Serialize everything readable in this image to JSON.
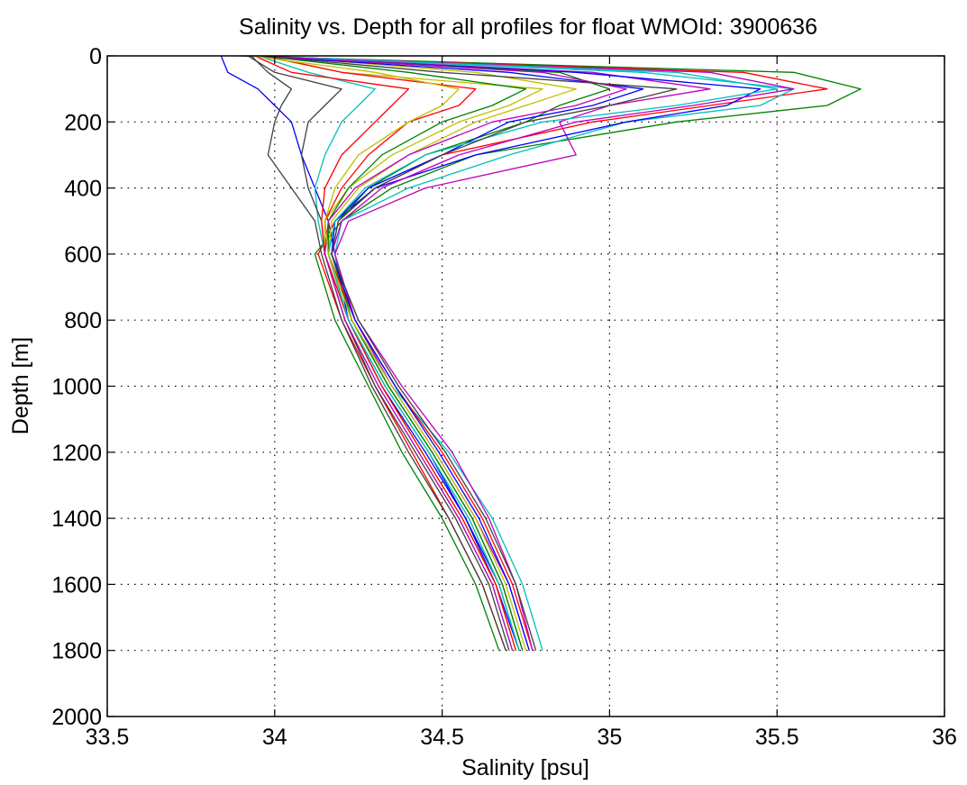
{
  "chart_data": {
    "type": "line",
    "title": "Salinity vs. Depth for all profiles for float WMOId: 3900636",
    "xlabel": "Salinity [psu]",
    "ylabel": "Depth [m]",
    "xlim": [
      33.5,
      36
    ],
    "ylim": [
      0,
      2000
    ],
    "y_reversed": true,
    "grid": true,
    "legend": "none",
    "x_ticks": [
      "33.5",
      "34",
      "34.5",
      "35",
      "35.5",
      "36"
    ],
    "y_ticks": [
      "0",
      "200",
      "400",
      "600",
      "800",
      "1000",
      "1200",
      "1400",
      "1600",
      "1800",
      "2000"
    ],
    "x_tick_values": [
      33.5,
      34,
      34.5,
      35,
      35.5,
      36
    ],
    "y_tick_values": [
      0,
      200,
      400,
      600,
      800,
      1000,
      1200,
      1400,
      1600,
      1800,
      2000
    ],
    "line_colors": [
      "#0000ff",
      "#008000",
      "#ff0000",
      "#00bfbf",
      "#bf00bf",
      "#bfbf00",
      "#404040"
    ],
    "depths": [
      0,
      50,
      100,
      150,
      200,
      300,
      400,
      500,
      600,
      800,
      1000,
      1200,
      1400,
      1600,
      1800
    ],
    "series": [
      {
        "values": [
          33.84,
          33.86,
          33.95,
          34.0,
          34.05,
          34.08,
          34.12,
          34.16,
          34.18,
          34.22,
          34.33,
          34.46,
          34.57,
          34.66,
          34.73
        ]
      },
      {
        "values": [
          33.9,
          35.55,
          35.75,
          35.65,
          35.2,
          34.6,
          34.35,
          34.2,
          34.12,
          34.18,
          34.28,
          34.38,
          34.5,
          34.6,
          34.67
        ]
      },
      {
        "values": [
          33.9,
          35.4,
          35.65,
          35.3,
          34.95,
          34.5,
          34.3,
          34.18,
          34.13,
          34.2,
          34.3,
          34.41,
          34.52,
          34.62,
          34.69
        ]
      },
      {
        "values": [
          33.95,
          35.1,
          35.55,
          35.45,
          35.05,
          34.7,
          34.4,
          34.2,
          34.18,
          34.23,
          34.35,
          34.52,
          34.65,
          34.74,
          34.8
        ]
      },
      {
        "values": [
          33.95,
          34.95,
          35.3,
          35.0,
          34.85,
          34.9,
          34.45,
          34.22,
          34.18,
          34.24,
          34.35,
          34.48,
          34.6,
          34.7,
          34.76
        ]
      },
      {
        "values": [
          33.96,
          34.2,
          34.8,
          34.7,
          34.55,
          34.35,
          34.22,
          34.15,
          34.15,
          34.22,
          34.32,
          34.44,
          34.56,
          34.66,
          34.72
        ]
      },
      {
        "values": [
          33.93,
          33.98,
          34.05,
          34.02,
          34.0,
          33.98,
          34.05,
          34.12,
          34.14,
          34.2,
          34.29,
          34.4,
          34.52,
          34.62,
          34.69
        ]
      },
      {
        "values": [
          33.92,
          34.9,
          35.45,
          35.35,
          35.05,
          34.6,
          34.3,
          34.18,
          34.16,
          34.22,
          34.32,
          34.45,
          34.57,
          34.67,
          34.73
        ]
      },
      {
        "values": [
          33.94,
          34.85,
          35.0,
          34.85,
          34.75,
          34.45,
          34.28,
          34.19,
          34.17,
          34.23,
          34.34,
          34.47,
          34.59,
          34.68,
          34.74
        ]
      },
      {
        "values": [
          33.97,
          34.2,
          34.6,
          34.55,
          34.4,
          34.28,
          34.2,
          34.15,
          34.16,
          34.24,
          34.36,
          34.5,
          34.62,
          34.71,
          34.77
        ]
      },
      {
        "values": [
          33.95,
          34.1,
          34.3,
          34.25,
          34.2,
          34.15,
          34.12,
          34.13,
          34.15,
          34.21,
          34.31,
          34.43,
          34.55,
          34.65,
          34.71
        ]
      },
      {
        "values": [
          33.93,
          35.3,
          35.55,
          35.25,
          34.9,
          34.55,
          34.32,
          34.2,
          34.17,
          34.25,
          34.38,
          34.53,
          34.64,
          34.72,
          34.77
        ]
      },
      {
        "values": [
          33.98,
          34.6,
          34.9,
          34.75,
          34.6,
          34.4,
          34.25,
          34.17,
          34.16,
          34.22,
          34.33,
          34.46,
          34.58,
          34.67,
          34.73
        ]
      },
      {
        "values": [
          33.92,
          34.0,
          34.2,
          34.15,
          34.1,
          34.08,
          34.1,
          34.14,
          34.15,
          34.21,
          34.3,
          34.42,
          34.54,
          34.64,
          34.7
        ]
      },
      {
        "values": [
          33.95,
          34.7,
          35.1,
          34.95,
          34.7,
          34.5,
          34.28,
          34.18,
          34.17,
          34.24,
          34.36,
          34.49,
          34.61,
          34.7,
          34.76
        ]
      },
      {
        "values": [
          33.96,
          34.4,
          34.75,
          34.65,
          34.5,
          34.32,
          34.22,
          34.16,
          34.16,
          34.23,
          34.34,
          34.47,
          34.59,
          34.68,
          34.74
        ]
      },
      {
        "values": [
          33.94,
          34.05,
          34.4,
          34.35,
          34.3,
          34.2,
          34.15,
          34.14,
          34.15,
          34.22,
          34.32,
          34.44,
          34.56,
          34.66,
          34.72
        ]
      },
      {
        "values": [
          33.95,
          35.2,
          35.5,
          35.2,
          34.8,
          34.45,
          34.27,
          34.18,
          34.16,
          34.22,
          34.33,
          34.46,
          34.58,
          34.67,
          34.73
        ]
      },
      {
        "values": [
          33.97,
          34.8,
          35.05,
          34.9,
          34.65,
          34.4,
          34.24,
          34.16,
          34.15,
          34.21,
          34.31,
          34.43,
          34.55,
          34.65,
          34.71
        ]
      },
      {
        "values": [
          33.93,
          34.3,
          34.55,
          34.5,
          34.4,
          34.25,
          34.18,
          34.15,
          34.16,
          34.23,
          34.35,
          34.48,
          34.6,
          34.69,
          34.75
        ]
      },
      {
        "values": [
          33.96,
          34.5,
          35.2,
          35.0,
          34.75,
          34.5,
          34.3,
          34.19,
          34.17,
          34.25,
          34.37,
          34.51,
          34.63,
          34.72,
          34.78
        ]
      }
    ]
  }
}
